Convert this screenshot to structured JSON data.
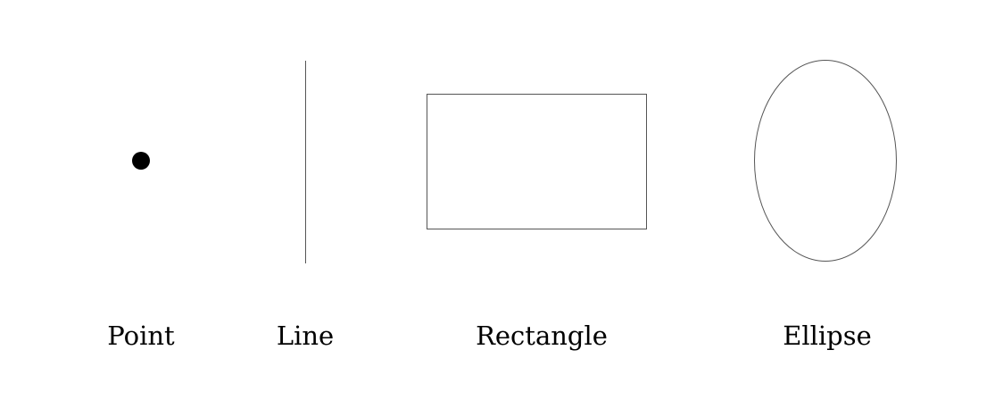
{
  "shapes": [
    {
      "name": "point",
      "label": "Point"
    },
    {
      "name": "line",
      "label": "Line"
    },
    {
      "name": "rectangle",
      "label": "Rectangle"
    },
    {
      "name": "ellipse",
      "label": "Ellipse"
    }
  ],
  "colors": {
    "background": "#ffffff",
    "stroke": "#555555",
    "fill_point": "#000000",
    "text": "#000000"
  }
}
